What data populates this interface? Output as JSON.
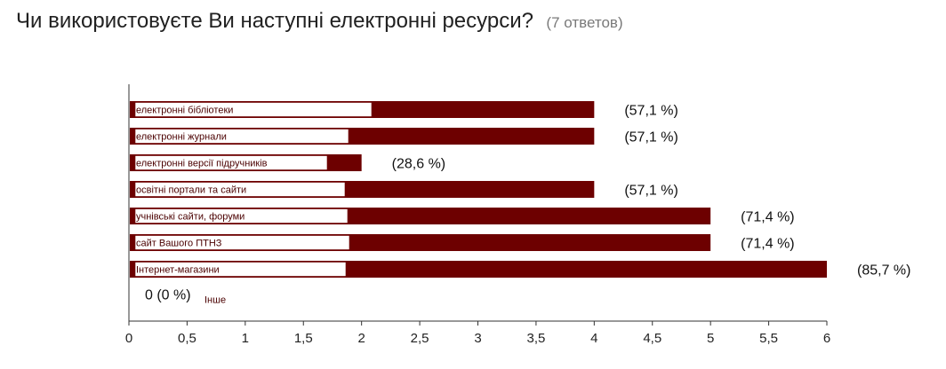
{
  "page": {
    "title": "Чи використовуєте Ви наступні електронні ресурси?",
    "responses": "(7 ответов)"
  },
  "chart_data": {
    "type": "bar",
    "orientation": "horizontal",
    "categories": [
      "електронні бібліотеки",
      "електронні журнали",
      "електронні версії підручників",
      "освітні портали та сайти",
      "учнівські сайти, форуми",
      "сайт Вашого ПТНЗ",
      "Інтернет-магазини",
      "Інше"
    ],
    "values": [
      4,
      4,
      2,
      4,
      5,
      5,
      6,
      0
    ],
    "value_labels": [
      "(57,1 %)",
      "(57,1 %)",
      "(28,6 %)",
      "(57,1 %)",
      "(71,4 %)",
      "(71,4 %)",
      "(85,7 %)",
      "0 (0 %)"
    ],
    "xlim": [
      0,
      6
    ],
    "xticks": [
      "0",
      "0,5",
      "1",
      "1,5",
      "2",
      "2,5",
      "3",
      "3,5",
      "4",
      "4,5",
      "5",
      "5,5",
      "6"
    ],
    "bar_color": "#6d0000",
    "grid": false,
    "legend": "none"
  }
}
